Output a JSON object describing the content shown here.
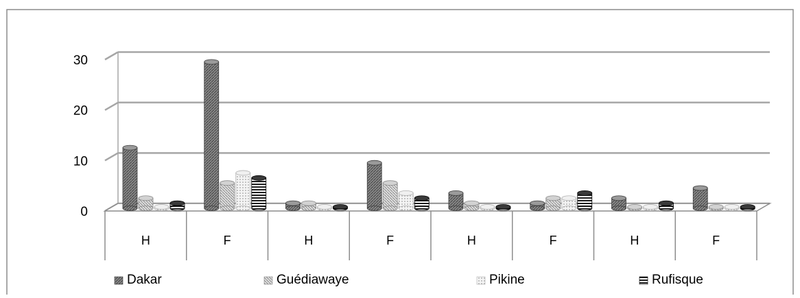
{
  "chart_data": {
    "type": "bar",
    "categories": [
      "H",
      "F",
      "H",
      "F",
      "H",
      "F",
      "H",
      "F"
    ],
    "series": [
      {
        "name": "Dakar",
        "values": [
          12,
          29,
          1,
          9,
          3,
          1,
          2,
          4
        ]
      },
      {
        "name": "Guédiawaye",
        "values": [
          2,
          5,
          1,
          5,
          1,
          2,
          0,
          0
        ]
      },
      {
        "name": "Pikine",
        "values": [
          0,
          7,
          0,
          3,
          0,
          2,
          0,
          0
        ]
      },
      {
        "name": "Rufisque",
        "values": [
          1,
          6,
          0,
          2,
          0,
          3,
          1,
          0
        ]
      }
    ],
    "y_ticks": [
      "0",
      "10",
      "20",
      "30"
    ],
    "ylim": [
      0,
      30
    ],
    "grid": true,
    "legend_position": "bottom",
    "title": "",
    "xlabel": "",
    "ylabel": "",
    "colors": {
      "Dakar": "#6e6e6e",
      "Guédiawaye": "#b8b8b8",
      "Pikine": "#e4e4e4",
      "Rufisque": "#1e1e1e",
      "gridline": "#a6a6a6",
      "axis": "#8c8c8c"
    }
  }
}
